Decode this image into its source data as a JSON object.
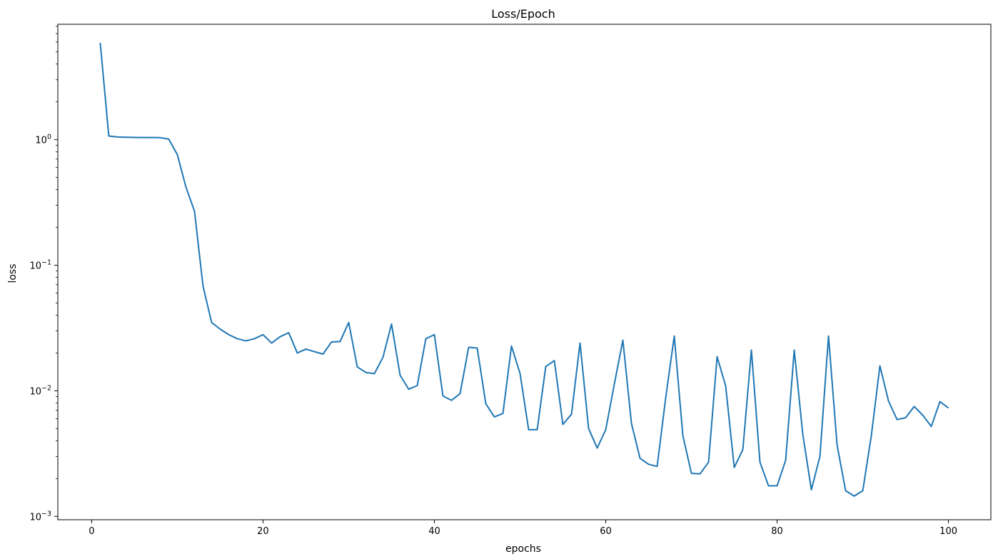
{
  "chart_data": {
    "type": "line",
    "title": "Loss/Epoch",
    "xlabel": "epochs",
    "ylabel": "loss",
    "xlim": [
      -3.95,
      104.95
    ],
    "ylim": [
      0.00094,
      8.3
    ],
    "yscale": "log",
    "grid": false,
    "x_ticks": [
      {
        "value": 0,
        "label": "0"
      },
      {
        "value": 20,
        "label": "20"
      },
      {
        "value": 40,
        "label": "40"
      },
      {
        "value": 60,
        "label": "60"
      },
      {
        "value": 80,
        "label": "80"
      },
      {
        "value": 100,
        "label": "100"
      }
    ],
    "y_ticks": [
      {
        "value": 1,
        "base": "10",
        "exp": "0"
      },
      {
        "value": 0.1,
        "base": "10",
        "exp": "−1"
      },
      {
        "value": 0.01,
        "base": "10",
        "exp": "−2"
      },
      {
        "value": 0.001,
        "base": "10",
        "exp": "−3"
      }
    ],
    "series": [
      {
        "color": "#1f77b4",
        "x": [
          1,
          2,
          3,
          4,
          5,
          6,
          7,
          8,
          9,
          10,
          11,
          12,
          13,
          14,
          15,
          16,
          17,
          18,
          19,
          20,
          21,
          22,
          23,
          24,
          25,
          26,
          27,
          28,
          29,
          30,
          31,
          32,
          33,
          34,
          35,
          36,
          37,
          38,
          39,
          40,
          41,
          42,
          43,
          44,
          45,
          46,
          47,
          48,
          49,
          50,
          51,
          52,
          53,
          54,
          55,
          56,
          57,
          58,
          59,
          60,
          61,
          62,
          63,
          64,
          65,
          66,
          67,
          68,
          69,
          70,
          71,
          72,
          73,
          74,
          75,
          76,
          77,
          78,
          79,
          80,
          81,
          82,
          83,
          84,
          85,
          86,
          87,
          88,
          89,
          90,
          91,
          92,
          93,
          94,
          95,
          96,
          97,
          98,
          99,
          100
        ],
        "y": [
          5.9,
          1.07,
          1.05,
          1.045,
          1.042,
          1.04,
          1.04,
          1.038,
          1.01,
          0.76,
          0.42,
          0.27,
          0.068,
          0.035,
          0.031,
          0.028,
          0.026,
          0.025,
          0.026,
          0.028,
          0.024,
          0.027,
          0.029,
          0.02,
          0.0215,
          0.0205,
          0.0196,
          0.0245,
          0.0247,
          0.035,
          0.0155,
          0.014,
          0.0137,
          0.0185,
          0.034,
          0.0133,
          0.0103,
          0.011,
          0.026,
          0.028,
          0.0091,
          0.0084,
          0.0095,
          0.0222,
          0.0219,
          0.0079,
          0.0062,
          0.0066,
          0.0227,
          0.0137,
          0.0049,
          0.0049,
          0.0156,
          0.0174,
          0.0054,
          0.0065,
          0.024,
          0.005,
          0.0035,
          0.0049,
          0.0113,
          0.0253,
          0.0055,
          0.0029,
          0.0026,
          0.0025,
          0.0088,
          0.0273,
          0.0044,
          0.0022,
          0.00218,
          0.0027,
          0.0187,
          0.0109,
          0.00245,
          0.0034,
          0.0211,
          0.0027,
          0.00175,
          0.00175,
          0.0028,
          0.0211,
          0.0045,
          0.00163,
          0.003,
          0.0273,
          0.0037,
          0.0016,
          0.00145,
          0.0016,
          0.0044,
          0.0158,
          0.0083,
          0.0059,
          0.0061,
          0.0075,
          0.0064,
          0.0052,
          0.0082,
          0.0073
        ]
      }
    ]
  }
}
